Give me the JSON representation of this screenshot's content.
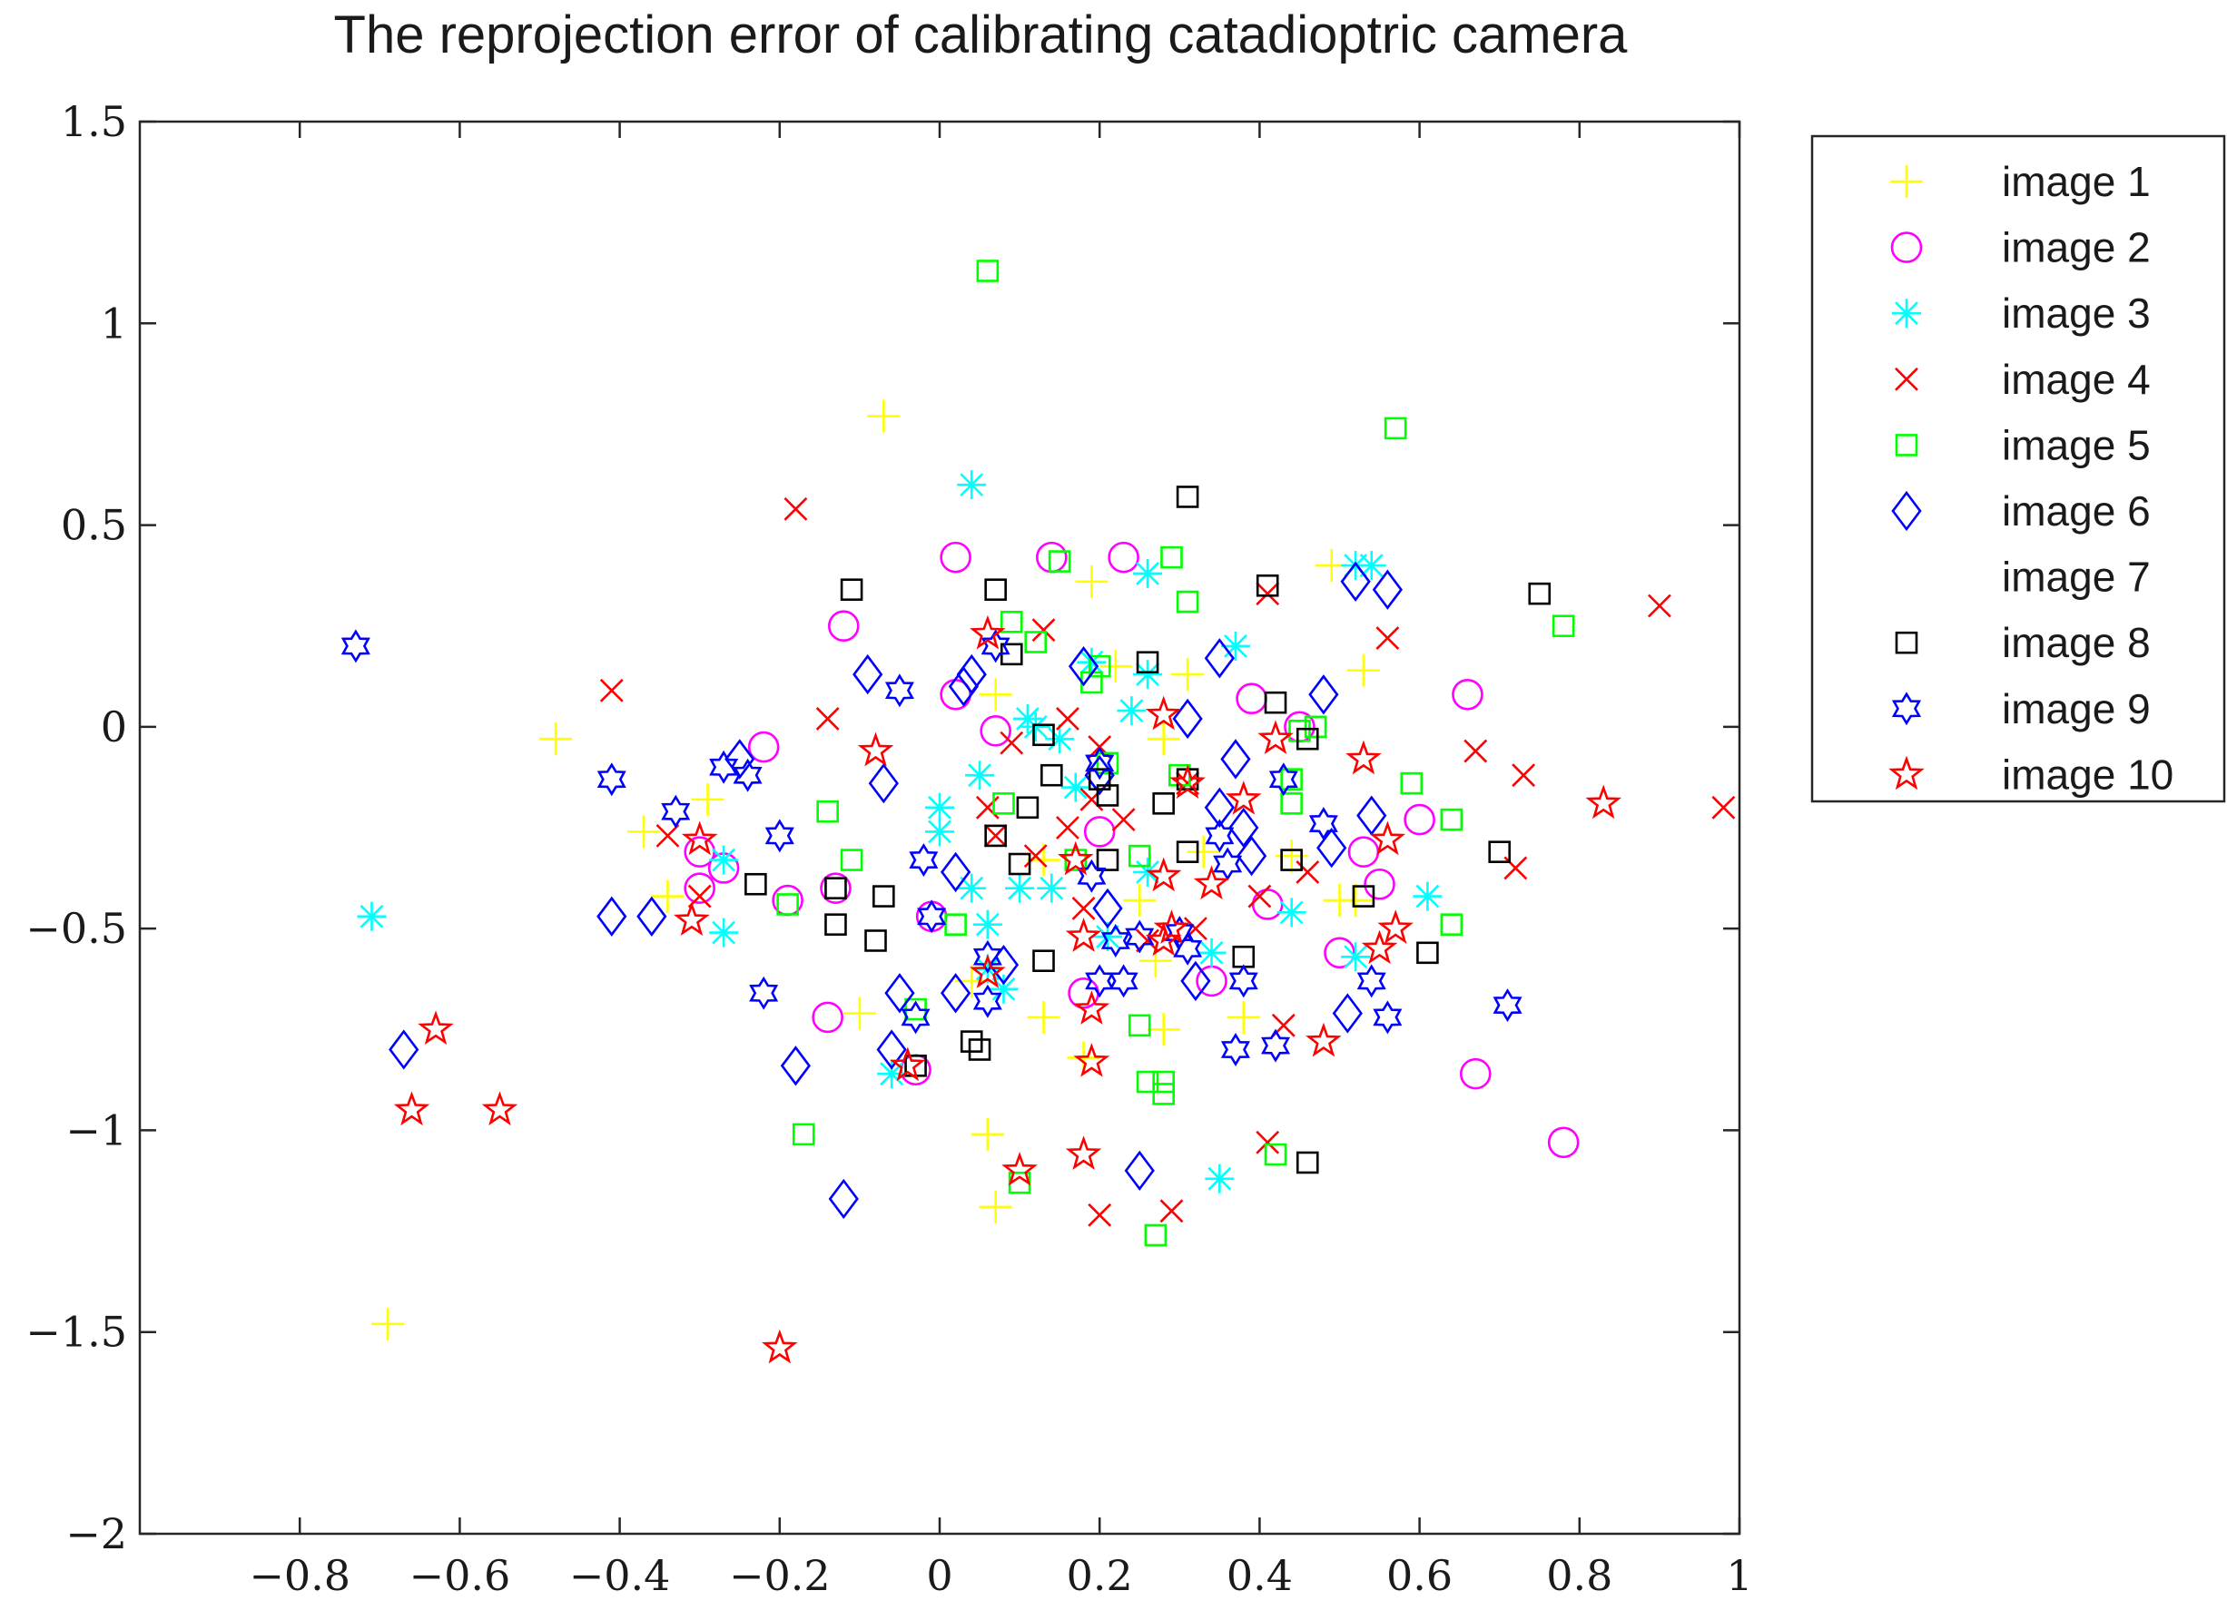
{
  "chart_data": {
    "type": "scatter",
    "title": "The reprojection error of calibrating catadioptric camera",
    "xlabel": "",
    "ylabel": "",
    "xlim": [
      -1.0,
      1.0
    ],
    "ylim": [
      -2.0,
      1.5
    ],
    "x_ticks": [
      -0.8,
      -0.6,
      -0.4,
      -0.2,
      0,
      0.2,
      0.4,
      0.6,
      0.8,
      1
    ],
    "x_tick_labels": [
      "−0.8",
      "−0.6",
      "−0.4",
      "−0.2",
      "0",
      "0.2",
      "0.4",
      "0.6",
      "0.8",
      "1"
    ],
    "y_ticks": [
      -2,
      -1.5,
      -1,
      -0.5,
      0,
      0.5,
      1,
      1.5
    ],
    "y_tick_labels": [
      "−2",
      "−1.5",
      "−1",
      "−0.5",
      "0",
      "0.5",
      "1",
      "1.5"
    ],
    "grid": false,
    "legend_position": "outside-top-right",
    "series": [
      {
        "name": "image 1",
        "marker": "plus",
        "color": "#ffff00",
        "points": [
          [
            -0.07,
            0.77
          ],
          [
            0.19,
            0.36
          ],
          [
            0.31,
            0.13
          ],
          [
            0.53,
            0.14
          ],
          [
            -0.48,
            -0.03
          ],
          [
            -0.37,
            -0.26
          ],
          [
            -0.29,
            -0.18
          ],
          [
            0.07,
            0.08
          ],
          [
            0.22,
            0.15
          ],
          [
            0.27,
            -0.58
          ],
          [
            0.28,
            -0.75
          ],
          [
            0.38,
            -0.72
          ],
          [
            -0.1,
            -0.71
          ],
          [
            0.06,
            -1.01
          ],
          [
            0.07,
            -1.19
          ],
          [
            -0.69,
            -1.48
          ],
          [
            0.5,
            -0.43
          ],
          [
            0.52,
            -0.43
          ],
          [
            0.33,
            -0.31
          ],
          [
            0.25,
            -0.43
          ],
          [
            0.18,
            -0.82
          ],
          [
            0.13,
            -0.33
          ],
          [
            0.04,
            -0.63
          ],
          [
            -0.34,
            -0.42
          ],
          [
            0.13,
            -0.72
          ],
          [
            0.28,
            -0.03
          ],
          [
            0.44,
            -0.32
          ],
          [
            0.49,
            0.4
          ]
        ]
      },
      {
        "name": "image 2",
        "marker": "circle",
        "color": "#ff00ff",
        "points": [
          [
            0.02,
            0.42
          ],
          [
            0.14,
            0.42
          ],
          [
            0.23,
            0.42
          ],
          [
            -0.12,
            0.25
          ],
          [
            0.66,
            0.08
          ],
          [
            0.02,
            0.08
          ],
          [
            0.39,
            0.07
          ],
          [
            0.07,
            -0.01
          ],
          [
            -0.22,
            -0.05
          ],
          [
            0.2,
            -0.26
          ],
          [
            0.6,
            -0.23
          ],
          [
            0.53,
            -0.31
          ],
          [
            -0.3,
            -0.31
          ],
          [
            -0.27,
            -0.35
          ],
          [
            -0.13,
            -0.4
          ],
          [
            -0.3,
            -0.4
          ],
          [
            -0.19,
            -0.43
          ],
          [
            -0.01,
            -0.47
          ],
          [
            0.41,
            -0.44
          ],
          [
            0.55,
            -0.39
          ],
          [
            0.5,
            -0.56
          ],
          [
            0.34,
            -0.63
          ],
          [
            0.18,
            -0.66
          ],
          [
            -0.14,
            -0.72
          ],
          [
            -0.03,
            -0.85
          ],
          [
            0.67,
            -0.86
          ],
          [
            0.78,
            -1.03
          ],
          [
            0.45,
            0.0
          ]
        ]
      },
      {
        "name": "image 3",
        "marker": "asterisk",
        "color": "#00ffff",
        "points": [
          [
            0.04,
            0.6
          ],
          [
            0.52,
            0.4
          ],
          [
            0.54,
            0.4
          ],
          [
            0.26,
            0.38
          ],
          [
            0.37,
            0.2
          ],
          [
            0.19,
            0.16
          ],
          [
            0.26,
            0.13
          ],
          [
            0.12,
            0.0
          ],
          [
            0.24,
            0.04
          ],
          [
            0.11,
            0.02
          ],
          [
            0.15,
            -0.03
          ],
          [
            0.05,
            -0.12
          ],
          [
            0.17,
            -0.15
          ],
          [
            0.0,
            -0.2
          ],
          [
            0.0,
            -0.26
          ],
          [
            -0.27,
            -0.33
          ],
          [
            0.26,
            -0.36
          ],
          [
            0.14,
            -0.4
          ],
          [
            0.1,
            -0.4
          ],
          [
            0.04,
            -0.4
          ],
          [
            0.44,
            -0.46
          ],
          [
            0.61,
            -0.42
          ],
          [
            -0.27,
            -0.51
          ],
          [
            0.06,
            -0.49
          ],
          [
            0.34,
            -0.56
          ],
          [
            0.52,
            -0.57
          ],
          [
            0.06,
            -0.6
          ],
          [
            0.08,
            -0.65
          ],
          [
            -0.06,
            -0.86
          ],
          [
            0.35,
            -1.12
          ],
          [
            -0.71,
            -0.47
          ],
          [
            0.21,
            -0.52
          ]
        ]
      },
      {
        "name": "image 4",
        "marker": "x",
        "color": "#ff0000",
        "points": [
          [
            -0.18,
            0.54
          ],
          [
            0.41,
            0.33
          ],
          [
            0.9,
            0.3
          ],
          [
            0.13,
            0.24
          ],
          [
            0.56,
            0.22
          ],
          [
            -0.41,
            0.09
          ],
          [
            0.16,
            0.02
          ],
          [
            -0.14,
            0.02
          ],
          [
            0.09,
            -0.04
          ],
          [
            0.2,
            -0.05
          ],
          [
            0.67,
            -0.06
          ],
          [
            0.73,
            -0.12
          ],
          [
            0.31,
            -0.14
          ],
          [
            0.98,
            -0.2
          ],
          [
            0.19,
            -0.18
          ],
          [
            0.23,
            -0.23
          ],
          [
            0.16,
            -0.25
          ],
          [
            0.07,
            -0.27
          ],
          [
            -0.34,
            -0.27
          ],
          [
            0.06,
            -0.2
          ],
          [
            0.12,
            -0.32
          ],
          [
            0.72,
            -0.35
          ],
          [
            0.46,
            -0.36
          ],
          [
            0.4,
            -0.42
          ],
          [
            -0.3,
            -0.42
          ],
          [
            0.26,
            -0.53
          ],
          [
            0.18,
            -0.45
          ],
          [
            0.43,
            -0.74
          ],
          [
            0.41,
            -1.03
          ],
          [
            0.2,
            -1.21
          ],
          [
            0.29,
            -1.2
          ],
          [
            0.32,
            -0.5
          ]
        ]
      },
      {
        "name": "image 5",
        "marker": "square",
        "color": "#00ff00",
        "points": [
          [
            0.06,
            1.13
          ],
          [
            0.57,
            0.74
          ],
          [
            0.29,
            0.42
          ],
          [
            0.15,
            0.41
          ],
          [
            0.31,
            0.31
          ],
          [
            0.09,
            0.26
          ],
          [
            0.78,
            0.25
          ],
          [
            0.12,
            0.21
          ],
          [
            0.2,
            0.15
          ],
          [
            0.19,
            0.11
          ],
          [
            0.47,
            0.0
          ],
          [
            0.45,
            -0.01
          ],
          [
            0.21,
            -0.09
          ],
          [
            0.3,
            -0.12
          ],
          [
            0.44,
            -0.13
          ],
          [
            0.59,
            -0.14
          ],
          [
            0.08,
            -0.19
          ],
          [
            0.44,
            -0.19
          ],
          [
            -0.14,
            -0.21
          ],
          [
            0.64,
            -0.23
          ],
          [
            -0.11,
            -0.33
          ],
          [
            0.17,
            -0.33
          ],
          [
            0.25,
            -0.32
          ],
          [
            -0.19,
            -0.44
          ],
          [
            0.02,
            -0.49
          ],
          [
            0.64,
            -0.49
          ],
          [
            -0.03,
            -0.7
          ],
          [
            0.25,
            -0.74
          ],
          [
            0.26,
            -0.88
          ],
          [
            0.28,
            -0.88
          ],
          [
            0.28,
            -0.91
          ],
          [
            -0.17,
            -1.01
          ],
          [
            0.1,
            -1.13
          ],
          [
            0.42,
            -1.06
          ],
          [
            0.27,
            -1.26
          ]
        ]
      },
      {
        "name": "image 6",
        "marker": "diamond",
        "color": "#0000ff",
        "points": [
          [
            0.52,
            0.36
          ],
          [
            0.56,
            0.34
          ],
          [
            -0.09,
            0.13
          ],
          [
            0.04,
            0.13
          ],
          [
            0.03,
            0.1
          ],
          [
            0.18,
            0.15
          ],
          [
            0.35,
            0.17
          ],
          [
            0.48,
            0.08
          ],
          [
            0.31,
            0.02
          ],
          [
            0.37,
            -0.08
          ],
          [
            -0.25,
            -0.08
          ],
          [
            0.2,
            -0.12
          ],
          [
            -0.07,
            -0.14
          ],
          [
            0.35,
            -0.2
          ],
          [
            0.54,
            -0.22
          ],
          [
            0.49,
            -0.3
          ],
          [
            0.38,
            -0.25
          ],
          [
            0.39,
            -0.32
          ],
          [
            0.02,
            -0.36
          ],
          [
            -0.41,
            -0.47
          ],
          [
            -0.36,
            -0.47
          ],
          [
            0.21,
            -0.45
          ],
          [
            0.02,
            -0.66
          ],
          [
            -0.05,
            -0.66
          ],
          [
            0.08,
            -0.59
          ],
          [
            0.32,
            -0.63
          ],
          [
            0.51,
            -0.71
          ],
          [
            -0.06,
            -0.8
          ],
          [
            -0.18,
            -0.84
          ],
          [
            -0.67,
            -0.8
          ],
          [
            -0.12,
            -1.17
          ],
          [
            0.25,
            -1.1
          ]
        ]
      },
      {
        "name": "image 7",
        "marker": "none",
        "color": "#ffffff",
        "points": []
      },
      {
        "name": "image 8",
        "marker": "square",
        "color": "#000000",
        "points": [
          [
            0.31,
            0.57
          ],
          [
            -0.11,
            0.34
          ],
          [
            0.07,
            0.34
          ],
          [
            0.41,
            0.35
          ],
          [
            0.75,
            0.33
          ],
          [
            0.09,
            0.18
          ],
          [
            0.26,
            0.16
          ],
          [
            0.42,
            0.06
          ],
          [
            0.46,
            -0.03
          ],
          [
            0.13,
            -0.02
          ],
          [
            0.14,
            -0.12
          ],
          [
            0.2,
            -0.13
          ],
          [
            0.31,
            -0.13
          ],
          [
            0.21,
            -0.17
          ],
          [
            0.11,
            -0.2
          ],
          [
            0.28,
            -0.19
          ],
          [
            0.07,
            -0.27
          ],
          [
            0.31,
            -0.31
          ],
          [
            0.1,
            -0.34
          ],
          [
            0.21,
            -0.33
          ],
          [
            0.44,
            -0.33
          ],
          [
            0.7,
            -0.31
          ],
          [
            -0.23,
            -0.39
          ],
          [
            -0.13,
            -0.4
          ],
          [
            -0.07,
            -0.42
          ],
          [
            0.53,
            -0.42
          ],
          [
            -0.13,
            -0.49
          ],
          [
            -0.08,
            -0.53
          ],
          [
            0.13,
            -0.58
          ],
          [
            0.38,
            -0.57
          ],
          [
            0.61,
            -0.56
          ],
          [
            0.04,
            -0.78
          ],
          [
            0.05,
            -0.8
          ],
          [
            -0.03,
            -0.84
          ],
          [
            0.46,
            -1.08
          ]
        ]
      },
      {
        "name": "image 9",
        "marker": "hexagram",
        "color": "#0000ff",
        "points": [
          [
            -0.73,
            0.2
          ],
          [
            0.07,
            0.2
          ],
          [
            -0.05,
            0.09
          ],
          [
            -0.41,
            -0.13
          ],
          [
            -0.27,
            -0.1
          ],
          [
            -0.24,
            -0.12
          ],
          [
            0.2,
            -0.09
          ],
          [
            0.43,
            -0.13
          ],
          [
            -0.33,
            -0.21
          ],
          [
            -0.2,
            -0.27
          ],
          [
            0.35,
            -0.27
          ],
          [
            0.48,
            -0.24
          ],
          [
            -0.02,
            -0.33
          ],
          [
            0.36,
            -0.34
          ],
          [
            0.19,
            -0.37
          ],
          [
            -0.01,
            -0.47
          ],
          [
            0.25,
            -0.52
          ],
          [
            0.3,
            -0.51
          ],
          [
            0.31,
            -0.55
          ],
          [
            0.06,
            -0.57
          ],
          [
            0.2,
            -0.63
          ],
          [
            0.23,
            -0.63
          ],
          [
            0.38,
            -0.63
          ],
          [
            0.54,
            -0.63
          ],
          [
            -0.22,
            -0.66
          ],
          [
            0.06,
            -0.68
          ],
          [
            0.71,
            -0.69
          ],
          [
            0.56,
            -0.72
          ],
          [
            -0.03,
            -0.72
          ],
          [
            0.37,
            -0.8
          ],
          [
            0.42,
            -0.79
          ],
          [
            0.22,
            -0.53
          ]
        ]
      },
      {
        "name": "image 10",
        "marker": "pentagram",
        "color": "#ff0000",
        "points": [
          [
            0.06,
            0.23
          ],
          [
            0.28,
            0.03
          ],
          [
            0.42,
            -0.03
          ],
          [
            0.53,
            -0.08
          ],
          [
            -0.08,
            -0.06
          ],
          [
            0.31,
            -0.14
          ],
          [
            0.38,
            -0.18
          ],
          [
            0.83,
            -0.19
          ],
          [
            -0.3,
            -0.28
          ],
          [
            0.56,
            -0.28
          ],
          [
            0.17,
            -0.33
          ],
          [
            0.34,
            -0.39
          ],
          [
            -0.31,
            -0.48
          ],
          [
            0.57,
            -0.5
          ],
          [
            0.55,
            -0.55
          ],
          [
            0.29,
            -0.5
          ],
          [
            0.28,
            -0.53
          ],
          [
            0.18,
            -0.52
          ],
          [
            0.06,
            -0.61
          ],
          [
            0.19,
            -0.7
          ],
          [
            0.48,
            -0.78
          ],
          [
            0.19,
            -0.83
          ],
          [
            -0.04,
            -0.84
          ],
          [
            -0.63,
            -0.75
          ],
          [
            -0.66,
            -0.95
          ],
          [
            -0.55,
            -0.95
          ],
          [
            0.18,
            -1.06
          ],
          [
            0.1,
            -1.1
          ],
          [
            -0.2,
            -1.54
          ],
          [
            0.28,
            -0.37
          ]
        ]
      }
    ]
  }
}
